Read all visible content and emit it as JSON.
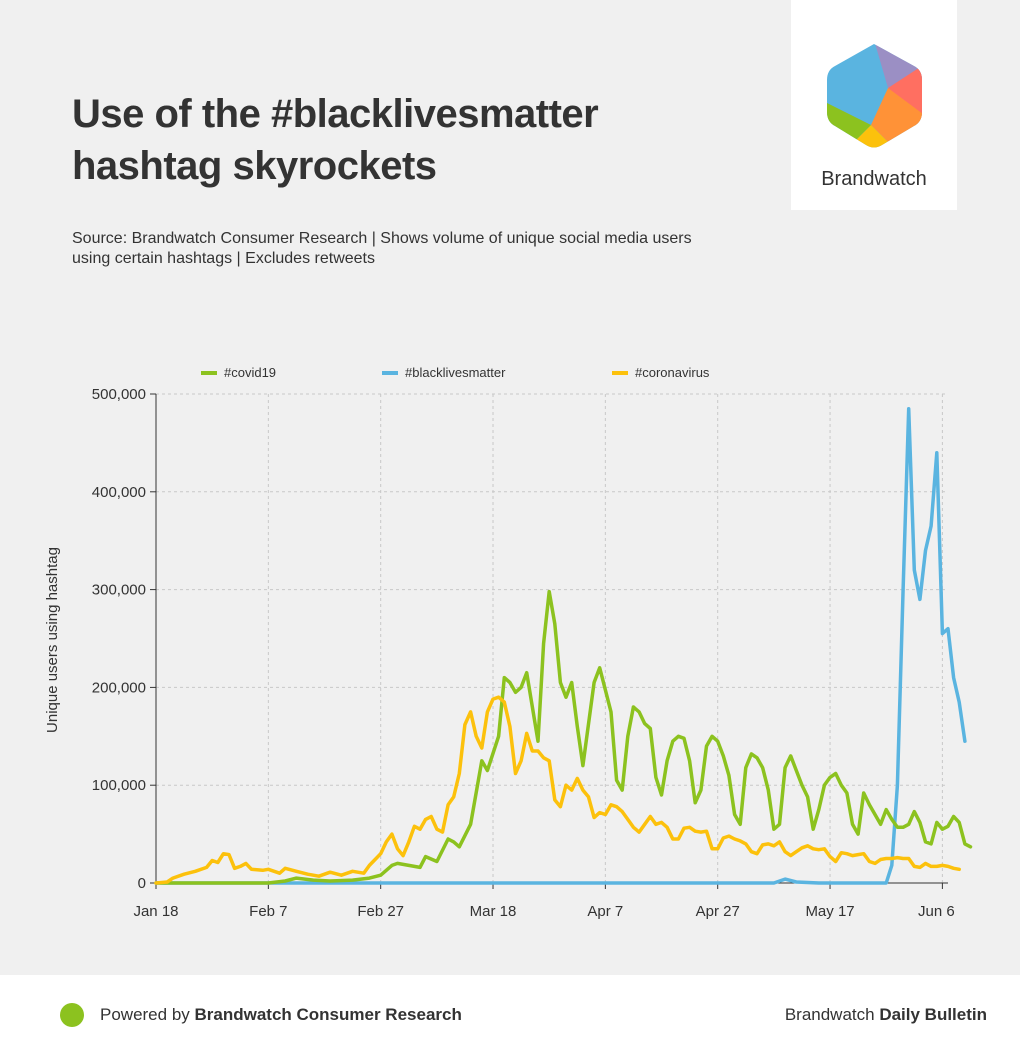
{
  "header": {
    "title_line1": "Use of the #blacklivesmatter",
    "title_line2": "hashtag skyrockets",
    "subtitle_line1": "Source: Brandwatch Consumer Research | Shows volume of unique social media users",
    "subtitle_line2": "using certain hashtags | Excludes retweets"
  },
  "logo": {
    "text": "Brandwatch"
  },
  "footer": {
    "powered_prefix": "Powered by ",
    "powered_bold": "Brandwatch Consumer Research",
    "bulletin_prefix": "Brandwatch ",
    "bulletin_bold": "Daily Bulletin"
  },
  "colors": {
    "covid19": "#8cc21f",
    "blacklivesmatter": "#5ab4e0",
    "coronavirus": "#fcc10c",
    "brand_dot": "#8cc21f"
  },
  "chart_data": {
    "type": "line",
    "ylabel": "Unique users using hashtag",
    "xlabel": "",
    "ylim": [
      0,
      500000
    ],
    "y_ticks": [
      "0",
      "100,000",
      "200,000",
      "300,000",
      "400,000",
      "500,000"
    ],
    "x_ticks": [
      "Jan 18",
      "Feb 7",
      "Feb 27",
      "Mar 18",
      "Apr 7",
      "Apr 27",
      "May 17",
      "Jun 6"
    ],
    "grid": true,
    "legend_position": "top",
    "x_start": "2020-01-18",
    "x_end": "2020-06-07",
    "series": [
      {
        "name": "#covid19",
        "color": "#8cc21f",
        "points": [
          [
            "2020-01-18",
            0
          ],
          [
            "2020-01-23",
            0
          ],
          [
            "2020-01-28",
            0
          ],
          [
            "2020-02-02",
            0
          ],
          [
            "2020-02-07",
            0
          ],
          [
            "2020-02-10",
            2000
          ],
          [
            "2020-02-12",
            5000
          ],
          [
            "2020-02-15",
            3000
          ],
          [
            "2020-02-18",
            2000
          ],
          [
            "2020-02-22",
            3000
          ],
          [
            "2020-02-25",
            5000
          ],
          [
            "2020-02-27",
            8000
          ],
          [
            "2020-02-29",
            18000
          ],
          [
            "2020-03-01",
            20000
          ],
          [
            "2020-03-03",
            18000
          ],
          [
            "2020-03-05",
            16000
          ],
          [
            "2020-03-06",
            27000
          ],
          [
            "2020-03-08",
            22000
          ],
          [
            "2020-03-10",
            45000
          ],
          [
            "2020-03-11",
            42000
          ],
          [
            "2020-03-12",
            37000
          ],
          [
            "2020-03-14",
            60000
          ],
          [
            "2020-03-16",
            125000
          ],
          [
            "2020-03-17",
            115000
          ],
          [
            "2020-03-19",
            150000
          ],
          [
            "2020-03-20",
            210000
          ],
          [
            "2020-03-21",
            205000
          ],
          [
            "2020-03-22",
            195000
          ],
          [
            "2020-03-23",
            200000
          ],
          [
            "2020-03-24",
            215000
          ],
          [
            "2020-03-26",
            145000
          ],
          [
            "2020-03-27",
            245000
          ],
          [
            "2020-03-28",
            298000
          ],
          [
            "2020-03-29",
            265000
          ],
          [
            "2020-03-30",
            205000
          ],
          [
            "2020-03-31",
            190000
          ],
          [
            "2020-04-01",
            205000
          ],
          [
            "2020-04-02",
            160000
          ],
          [
            "2020-04-03",
            120000
          ],
          [
            "2020-04-05",
            205000
          ],
          [
            "2020-04-06",
            220000
          ],
          [
            "2020-04-08",
            175000
          ],
          [
            "2020-04-09",
            105000
          ],
          [
            "2020-04-10",
            95000
          ],
          [
            "2020-04-11",
            150000
          ],
          [
            "2020-04-12",
            180000
          ],
          [
            "2020-04-13",
            175000
          ],
          [
            "2020-04-14",
            163000
          ],
          [
            "2020-04-15",
            158000
          ],
          [
            "2020-04-16",
            108000
          ],
          [
            "2020-04-17",
            90000
          ],
          [
            "2020-04-18",
            125000
          ],
          [
            "2020-04-19",
            145000
          ],
          [
            "2020-04-20",
            150000
          ],
          [
            "2020-04-21",
            148000
          ],
          [
            "2020-04-22",
            125000
          ],
          [
            "2020-04-23",
            82000
          ],
          [
            "2020-04-24",
            95000
          ],
          [
            "2020-04-25",
            140000
          ],
          [
            "2020-04-26",
            150000
          ],
          [
            "2020-04-27",
            145000
          ],
          [
            "2020-04-28",
            130000
          ],
          [
            "2020-04-29",
            110000
          ],
          [
            "2020-04-30",
            70000
          ],
          [
            "2020-05-01",
            60000
          ],
          [
            "2020-05-02",
            118000
          ],
          [
            "2020-05-03",
            132000
          ],
          [
            "2020-05-04",
            128000
          ],
          [
            "2020-05-05",
            118000
          ],
          [
            "2020-05-06",
            95000
          ],
          [
            "2020-05-07",
            55000
          ],
          [
            "2020-05-08",
            60000
          ],
          [
            "2020-05-09",
            118000
          ],
          [
            "2020-05-10",
            130000
          ],
          [
            "2020-05-11",
            115000
          ],
          [
            "2020-05-12",
            100000
          ],
          [
            "2020-05-13",
            88000
          ],
          [
            "2020-05-14",
            55000
          ],
          [
            "2020-05-15",
            75000
          ],
          [
            "2020-05-16",
            100000
          ],
          [
            "2020-05-17",
            108000
          ],
          [
            "2020-05-18",
            112000
          ],
          [
            "2020-05-19",
            100000
          ],
          [
            "2020-05-20",
            92000
          ],
          [
            "2020-05-21",
            60000
          ],
          [
            "2020-05-22",
            50000
          ],
          [
            "2020-05-23",
            92000
          ],
          [
            "2020-05-24",
            80000
          ],
          [
            "2020-05-25",
            70000
          ],
          [
            "2020-05-26",
            60000
          ],
          [
            "2020-05-27",
            75000
          ],
          [
            "2020-05-28",
            65000
          ],
          [
            "2020-05-29",
            57000
          ],
          [
            "2020-05-30",
            57000
          ],
          [
            "2020-05-31",
            60000
          ],
          [
            "2020-06-01",
            73000
          ],
          [
            "2020-06-02",
            62000
          ],
          [
            "2020-06-03",
            42000
          ],
          [
            "2020-06-04",
            40000
          ],
          [
            "2020-06-05",
            62000
          ],
          [
            "2020-06-06",
            55000
          ],
          [
            "2020-06-07",
            58000
          ],
          [
            "2020-06-08",
            68000
          ],
          [
            "2020-06-09",
            62000
          ],
          [
            "2020-06-10",
            40000
          ],
          [
            "2020-06-11",
            37000
          ]
        ]
      },
      {
        "name": "#blacklivesmatter",
        "color": "#5ab4e0",
        "points": [
          [
            "2020-01-18",
            0
          ],
          [
            "2020-02-15",
            0
          ],
          [
            "2020-03-15",
            0
          ],
          [
            "2020-04-15",
            0
          ],
          [
            "2020-05-01",
            0
          ],
          [
            "2020-05-07",
            0
          ],
          [
            "2020-05-09",
            4000
          ],
          [
            "2020-05-11",
            1000
          ],
          [
            "2020-05-15",
            0
          ],
          [
            "2020-05-25",
            0
          ],
          [
            "2020-05-27",
            0
          ],
          [
            "2020-05-28",
            18000
          ],
          [
            "2020-05-29",
            100000
          ],
          [
            "2020-05-30",
            300000
          ],
          [
            "2020-05-31",
            485000
          ],
          [
            "2020-06-01",
            320000
          ],
          [
            "2020-06-02",
            290000
          ],
          [
            "2020-06-03",
            340000
          ],
          [
            "2020-06-04",
            365000
          ],
          [
            "2020-06-05",
            440000
          ],
          [
            "2020-06-06",
            255000
          ],
          [
            "2020-06-07",
            260000
          ],
          [
            "2020-06-08",
            210000
          ],
          [
            "2020-06-09",
            185000
          ],
          [
            "2020-06-10",
            145000
          ]
        ]
      },
      {
        "name": "#coronavirus",
        "color": "#fcc10c",
        "points": [
          [
            "2020-01-18",
            0
          ],
          [
            "2020-01-20",
            1000
          ],
          [
            "2020-01-21",
            5000
          ],
          [
            "2020-01-23",
            9000
          ],
          [
            "2020-01-25",
            12000
          ],
          [
            "2020-01-27",
            16000
          ],
          [
            "2020-01-28",
            23000
          ],
          [
            "2020-01-29",
            21000
          ],
          [
            "2020-01-30",
            30000
          ],
          [
            "2020-01-31",
            29000
          ],
          [
            "2020-02-01",
            15000
          ],
          [
            "2020-02-02",
            17000
          ],
          [
            "2020-02-03",
            20000
          ],
          [
            "2020-02-04",
            14000
          ],
          [
            "2020-02-06",
            13000
          ],
          [
            "2020-02-07",
            14000
          ],
          [
            "2020-02-09",
            10000
          ],
          [
            "2020-02-10",
            15000
          ],
          [
            "2020-02-12",
            12000
          ],
          [
            "2020-02-14",
            9000
          ],
          [
            "2020-02-16",
            7000
          ],
          [
            "2020-02-18",
            11000
          ],
          [
            "2020-02-20",
            8000
          ],
          [
            "2020-02-22",
            12000
          ],
          [
            "2020-02-24",
            10000
          ],
          [
            "2020-02-25",
            18000
          ],
          [
            "2020-02-26",
            24000
          ],
          [
            "2020-02-27",
            30000
          ],
          [
            "2020-02-28",
            42000
          ],
          [
            "2020-02-29",
            50000
          ],
          [
            "2020-03-01",
            35000
          ],
          [
            "2020-03-02",
            28000
          ],
          [
            "2020-03-03",
            42000
          ],
          [
            "2020-03-04",
            58000
          ],
          [
            "2020-03-05",
            55000
          ],
          [
            "2020-03-06",
            65000
          ],
          [
            "2020-03-07",
            68000
          ],
          [
            "2020-03-08",
            55000
          ],
          [
            "2020-03-09",
            52000
          ],
          [
            "2020-03-10",
            80000
          ],
          [
            "2020-03-11",
            88000
          ],
          [
            "2020-03-12",
            112000
          ],
          [
            "2020-03-13",
            162000
          ],
          [
            "2020-03-14",
            175000
          ],
          [
            "2020-03-15",
            150000
          ],
          [
            "2020-03-16",
            138000
          ],
          [
            "2020-03-17",
            175000
          ],
          [
            "2020-03-18",
            188000
          ],
          [
            "2020-03-19",
            190000
          ],
          [
            "2020-03-20",
            185000
          ],
          [
            "2020-03-21",
            160000
          ],
          [
            "2020-03-22",
            112000
          ],
          [
            "2020-03-23",
            125000
          ],
          [
            "2020-03-24",
            153000
          ],
          [
            "2020-03-25",
            135000
          ],
          [
            "2020-03-26",
            135000
          ],
          [
            "2020-03-27",
            128000
          ],
          [
            "2020-03-28",
            125000
          ],
          [
            "2020-03-29",
            85000
          ],
          [
            "2020-03-30",
            78000
          ],
          [
            "2020-03-31",
            100000
          ],
          [
            "2020-04-01",
            95000
          ],
          [
            "2020-04-02",
            107000
          ],
          [
            "2020-04-03",
            95000
          ],
          [
            "2020-04-04",
            88000
          ],
          [
            "2020-04-05",
            67000
          ],
          [
            "2020-04-06",
            72000
          ],
          [
            "2020-04-07",
            70000
          ],
          [
            "2020-04-08",
            80000
          ],
          [
            "2020-04-09",
            78000
          ],
          [
            "2020-04-10",
            73000
          ],
          [
            "2020-04-11",
            65000
          ],
          [
            "2020-04-12",
            57000
          ],
          [
            "2020-04-13",
            52000
          ],
          [
            "2020-04-14",
            60000
          ],
          [
            "2020-04-15",
            68000
          ],
          [
            "2020-04-16",
            60000
          ],
          [
            "2020-04-17",
            62000
          ],
          [
            "2020-04-18",
            57000
          ],
          [
            "2020-04-19",
            45000
          ],
          [
            "2020-04-20",
            45000
          ],
          [
            "2020-04-21",
            56000
          ],
          [
            "2020-04-22",
            57000
          ],
          [
            "2020-04-23",
            53000
          ],
          [
            "2020-04-24",
            52000
          ],
          [
            "2020-04-25",
            53000
          ],
          [
            "2020-04-26",
            35000
          ],
          [
            "2020-04-27",
            35000
          ],
          [
            "2020-04-28",
            46000
          ],
          [
            "2020-04-29",
            48000
          ],
          [
            "2020-04-30",
            45000
          ],
          [
            "2020-05-01",
            43000
          ],
          [
            "2020-05-02",
            40000
          ],
          [
            "2020-05-03",
            32000
          ],
          [
            "2020-05-04",
            30000
          ],
          [
            "2020-05-05",
            39000
          ],
          [
            "2020-05-06",
            40000
          ],
          [
            "2020-05-07",
            38000
          ],
          [
            "2020-05-08",
            42000
          ],
          [
            "2020-05-09",
            32000
          ],
          [
            "2020-05-10",
            28000
          ],
          [
            "2020-05-11",
            32000
          ],
          [
            "2020-05-12",
            36000
          ],
          [
            "2020-05-13",
            38000
          ],
          [
            "2020-05-14",
            35000
          ],
          [
            "2020-05-15",
            34000
          ],
          [
            "2020-05-16",
            35000
          ],
          [
            "2020-05-17",
            27000
          ],
          [
            "2020-05-18",
            22000
          ],
          [
            "2020-05-19",
            31000
          ],
          [
            "2020-05-20",
            30000
          ],
          [
            "2020-05-21",
            28000
          ],
          [
            "2020-05-22",
            29000
          ],
          [
            "2020-05-23",
            30000
          ],
          [
            "2020-05-24",
            22000
          ],
          [
            "2020-05-25",
            20000
          ],
          [
            "2020-05-26",
            24000
          ],
          [
            "2020-05-27",
            25000
          ],
          [
            "2020-05-28",
            25000
          ],
          [
            "2020-05-29",
            26000
          ],
          [
            "2020-05-30",
            25000
          ],
          [
            "2020-05-31",
            25000
          ],
          [
            "2020-06-01",
            17000
          ],
          [
            "2020-06-02",
            16000
          ],
          [
            "2020-06-03",
            20000
          ],
          [
            "2020-06-04",
            17000
          ],
          [
            "2020-06-05",
            17000
          ],
          [
            "2020-06-06",
            18000
          ],
          [
            "2020-06-07",
            17000
          ],
          [
            "2020-06-08",
            15000
          ],
          [
            "2020-06-09",
            14000
          ]
        ]
      }
    ]
  }
}
